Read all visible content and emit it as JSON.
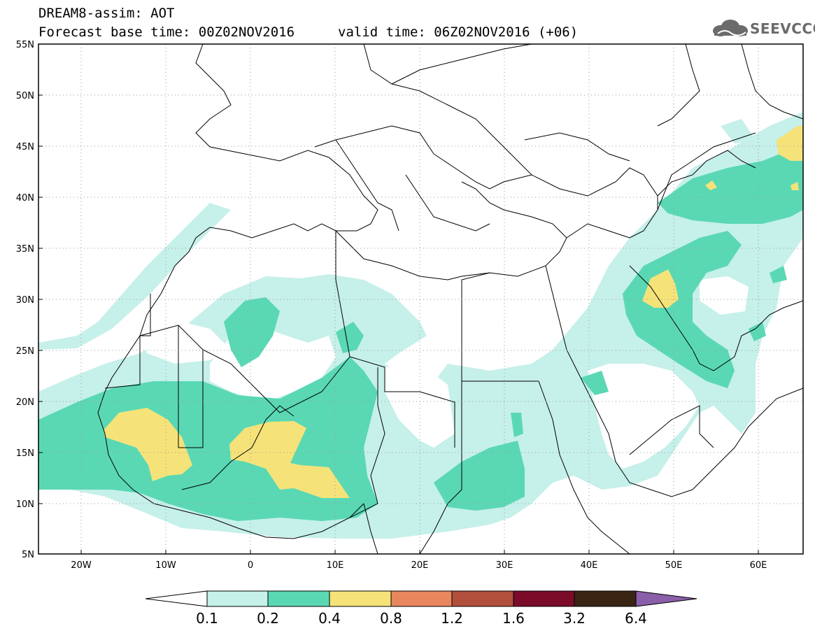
{
  "header": {
    "title_line": "DREAM8-assim: AOT",
    "base_time": "Forecast base time: 00Z02NOV2016",
    "valid_time": "valid time: 06Z02NOV2016 (+06)"
  },
  "logo": {
    "text": "SEEVCCC",
    "icon": "cloud-icon"
  },
  "map": {
    "lat_labels": [
      "55N",
      "50N",
      "45N",
      "40N",
      "35N",
      "30N",
      "25N",
      "20N",
      "15N",
      "10N",
      "5N"
    ],
    "lon_labels": [
      "20W",
      "10W",
      "0",
      "10E",
      "20E",
      "30E",
      "40E",
      "50E",
      "60E"
    ]
  },
  "colorbar": {
    "labels": [
      "0.1",
      "0.2",
      "0.4",
      "0.8",
      "1.2",
      "1.6",
      "3.2",
      "6.4"
    ],
    "colors": [
      "#c6f0ea",
      "#5ad8b4",
      "#f5e37a",
      "#e8875e",
      "#b24e3c",
      "#7a0c2a",
      "#3a2414",
      "#8a5ea8"
    ]
  },
  "field_colors": {
    "aot_0.1_0.2": "#c6f0ea",
    "aot_0.2_0.4": "#5ad8b4",
    "aot_0.4_0.8": "#f5e37a"
  }
}
